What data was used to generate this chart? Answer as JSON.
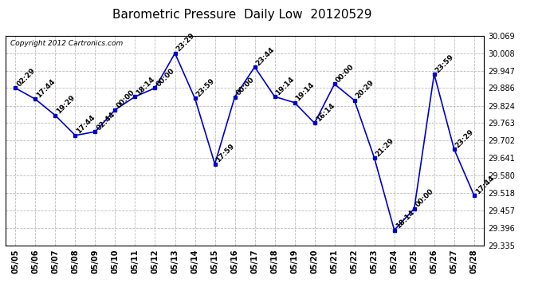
{
  "title": "Barometric Pressure  Daily Low  20120529",
  "copyright": "Copyright 2012 Cartronics.com",
  "x_labels": [
    "05/05",
    "05/06",
    "05/07",
    "05/08",
    "05/09",
    "05/10",
    "05/11",
    "05/12",
    "05/13",
    "05/14",
    "05/15",
    "05/16",
    "05/17",
    "05/18",
    "05/19",
    "05/20",
    "05/21",
    "05/22",
    "05/23",
    "05/24",
    "05/25",
    "05/26",
    "05/27",
    "05/28"
  ],
  "y_values": [
    29.886,
    29.847,
    29.79,
    29.72,
    29.733,
    29.81,
    29.856,
    29.886,
    30.008,
    29.85,
    29.62,
    29.855,
    29.96,
    29.856,
    29.835,
    29.763,
    29.9,
    29.843,
    29.641,
    29.388,
    29.463,
    29.935,
    29.672,
    29.51
  ],
  "point_labels": [
    "02:29",
    "17:44",
    "19:29",
    "17:44",
    "02:44",
    "00:00",
    "18:14",
    "00:00",
    "23:29",
    "23:59",
    "17:59",
    "00:00",
    "23:44",
    "19:14",
    "19:14",
    "16:14",
    "00:00",
    "20:29",
    "21:29",
    "18:14",
    "00:00",
    "23:59",
    "23:29",
    "17:44"
  ],
  "ylim_min": 29.335,
  "ylim_max": 30.069,
  "yticks": [
    29.335,
    29.396,
    29.457,
    29.518,
    29.58,
    29.641,
    29.702,
    29.763,
    29.824,
    29.886,
    29.947,
    30.008,
    30.069
  ],
  "line_color": "#0000cc",
  "marker_color": "#0000cc",
  "bg_color": "#ffffff",
  "grid_color": "#aaaaaa",
  "title_fontsize": 11,
  "label_fontsize": 7,
  "point_label_fontsize": 6.5
}
